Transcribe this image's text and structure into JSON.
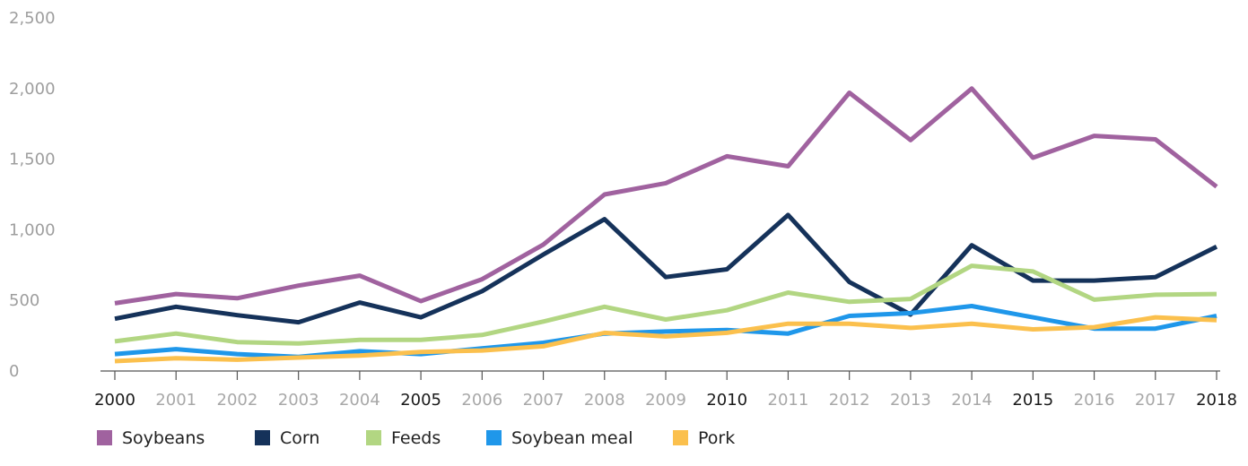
{
  "chart_data": {
    "type": "line",
    "title": "",
    "xlabel": "",
    "ylabel": "",
    "x": [
      "2000",
      "2001",
      "2002",
      "2003",
      "2004",
      "2005",
      "2006",
      "2007",
      "2008",
      "2009",
      "2010",
      "2011",
      "2012",
      "2013",
      "2014",
      "2015",
      "2016",
      "2017",
      "2018"
    ],
    "emphasized_x": [
      "2000",
      "2005",
      "2010",
      "2015",
      "2018"
    ],
    "ylim": [
      0,
      2500
    ],
    "y_ticks": [
      0,
      500,
      1000,
      1500,
      2000,
      2500
    ],
    "y_tick_labels": [
      "0",
      "500",
      "1,000",
      "1,500",
      "2,000",
      "2,500"
    ],
    "grid": false,
    "legend_position": "bottom-left",
    "series": [
      {
        "name": "Soybeans",
        "color": "#a0629f",
        "values": [
          480,
          545,
          515,
          605,
          675,
          495,
          650,
          895,
          1250,
          1330,
          1520,
          1450,
          1970,
          1635,
          2000,
          1510,
          1665,
          1640,
          1305
        ]
      },
      {
        "name": "Corn",
        "color": "#15325a",
        "values": [
          370,
          455,
          395,
          345,
          485,
          380,
          565,
          825,
          1075,
          665,
          720,
          1105,
          630,
          400,
          890,
          640,
          640,
          665,
          880
        ]
      },
      {
        "name": "Feeds",
        "color": "#b2d682",
        "values": [
          210,
          265,
          205,
          195,
          220,
          220,
          255,
          350,
          455,
          365,
          430,
          555,
          490,
          510,
          745,
          705,
          505,
          540,
          545
        ]
      },
      {
        "name": "Soybean meal",
        "color": "#1f97ea",
        "values": [
          120,
          155,
          120,
          100,
          140,
          120,
          160,
          200,
          265,
          280,
          290,
          265,
          390,
          410,
          460,
          380,
          300,
          300,
          390
        ]
      },
      {
        "name": "Pork",
        "color": "#fbc04d",
        "values": [
          70,
          90,
          80,
          95,
          110,
          135,
          145,
          175,
          270,
          245,
          270,
          335,
          335,
          305,
          335,
          295,
          310,
          380,
          360
        ]
      }
    ]
  }
}
